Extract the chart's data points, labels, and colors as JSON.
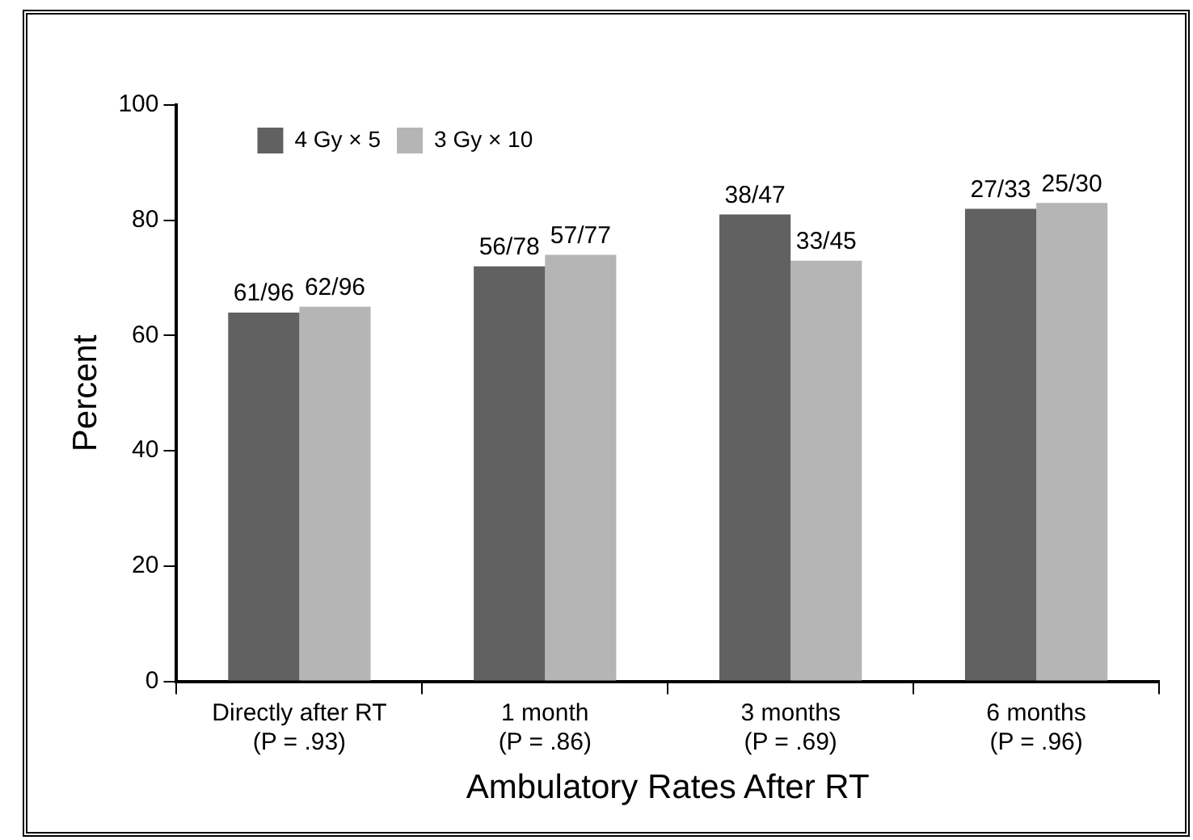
{
  "chart_data": {
    "type": "bar",
    "xlabel": "Ambulatory Rates After RT",
    "ylabel": "Percent",
    "categories": [
      "Directly after RT\n(P = .93)",
      "1 month\n(P = .86)",
      "3 months\n(P = .69)",
      "6 months\n(P = .96)"
    ],
    "series": [
      {
        "name": "4 Gy × 5",
        "color": "#616161",
        "values": [
          64,
          72,
          81,
          82
        ],
        "value_labels": [
          "61/96",
          "56/78",
          "38/47",
          "27/33"
        ]
      },
      {
        "name": "3 Gy × 10",
        "color": "#b5b5b5",
        "values": [
          65,
          74,
          73,
          83
        ],
        "value_labels": [
          "62/96",
          "57/77",
          "33/45",
          "25/30"
        ]
      }
    ],
    "ylim": [
      0,
      100
    ],
    "yticks": [
      0,
      20,
      40,
      60,
      80,
      100
    ],
    "grid": false,
    "legend": "top left"
  }
}
